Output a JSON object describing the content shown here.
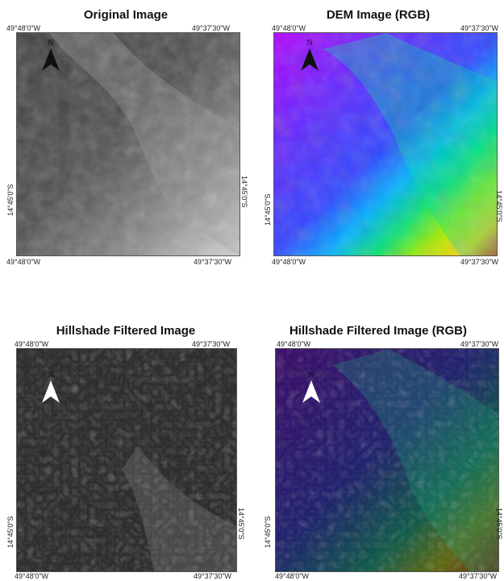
{
  "panels": [
    {
      "title": "Original Image",
      "coords": {
        "top_left": "49°48'0\"W",
        "top_right": "49°37'30\"W",
        "bottom_left": "49°48'0\"W",
        "bottom_right": "49°37'30\"W",
        "lat_left": "14°45'0\"S",
        "lat_right": "14°45'0\"S"
      },
      "north_label": "N",
      "arrow_color": "#111111"
    },
    {
      "title": "DEM Image (RGB)",
      "coords": {
        "top_left": "49°48'0\"W",
        "top_right": "49°37'30\"W",
        "bottom_left": "49°48'0\"W",
        "bottom_right": "49°37'30\"W",
        "lat_left": "14°45'0\"S",
        "lat_right": "14°45'0\"S"
      },
      "north_label": "N",
      "arrow_color": "#111111"
    },
    {
      "title": "Hillshade Filtered Image",
      "coords": {
        "top_left": "49°48'0\"W",
        "top_right": "49°37'30\"W",
        "bottom_left": "49°48'0\"W",
        "bottom_right": "49°37'30\"W",
        "lat_left": "14°45'0\"S",
        "lat_right": "14°45'0\"S"
      },
      "north_label": "N",
      "arrow_color": "#ffffff"
    },
    {
      "title": "Hillshade Filtered Image (RGB)",
      "coords": {
        "top_left": "49°48'0\"W",
        "top_right": "49°37'30\"W",
        "bottom_left": "49°48'0\"W",
        "bottom_right": "49°37'30\"W",
        "lat_left": "14°45'0\"S",
        "lat_right": "14°45'0\"S"
      },
      "north_label": "N",
      "arrow_color": "#ffffff"
    }
  ]
}
